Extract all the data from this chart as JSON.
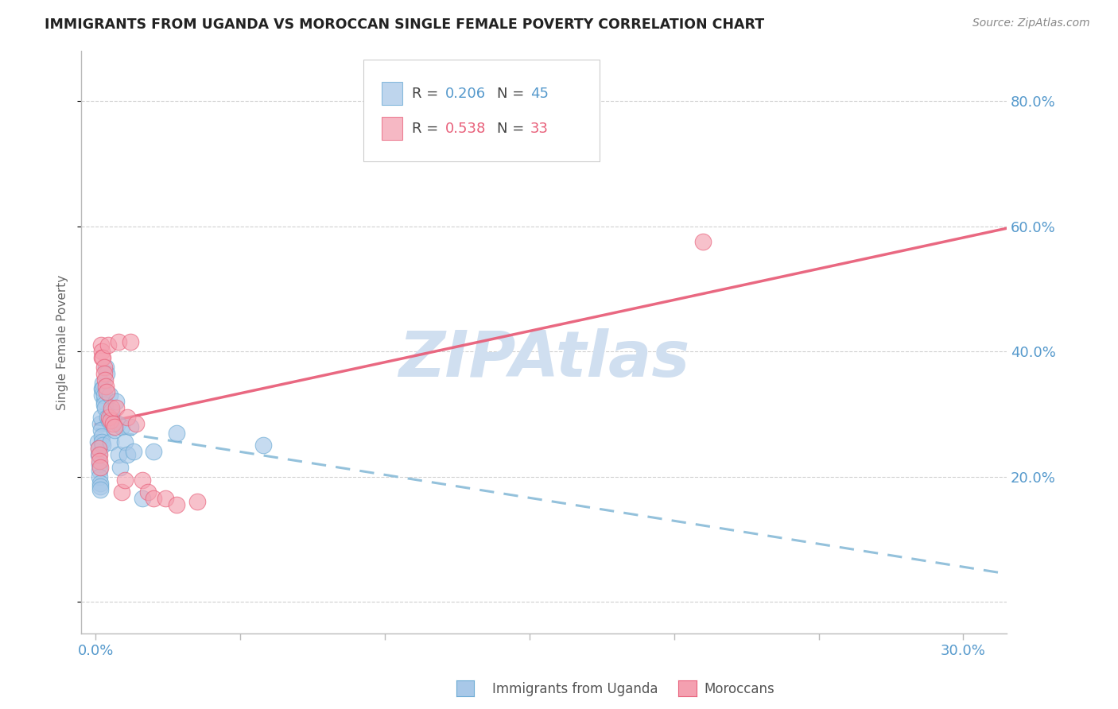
{
  "title": "IMMIGRANTS FROM UGANDA VS MOROCCAN SINGLE FEMALE POVERTY CORRELATION CHART",
  "source": "Source: ZipAtlas.com",
  "ylabel_label": "Single Female Poverty",
  "x_ticks": [
    0.0,
    0.05,
    0.1,
    0.15,
    0.2,
    0.25,
    0.3
  ],
  "x_tick_labels": [
    "0.0%",
    "",
    "",
    "",
    "",
    "",
    "30.0%"
  ],
  "y_ticks": [
    0.0,
    0.2,
    0.4,
    0.6,
    0.8
  ],
  "y_tick_labels": [
    "",
    "20.0%",
    "40.0%",
    "60.0%",
    "80.0%"
  ],
  "xlim": [
    -0.005,
    0.315
  ],
  "ylim": [
    -0.05,
    0.88
  ],
  "uganda_R": 0.206,
  "uganda_N": 45,
  "moroccan_R": 0.538,
  "moroccan_N": 33,
  "blue_color": "#a8c8e8",
  "pink_color": "#f4a0b0",
  "blue_edge_color": "#6aaad4",
  "pink_edge_color": "#e8607a",
  "blue_line_color": "#88bbd8",
  "pink_line_color": "#e8607a",
  "watermark_color": "#d0dff0",
  "grid_color": "#d0d0d0",
  "axis_label_color": "#5599cc",
  "title_color": "#222222",
  "legend_text_color": "#444444",
  "uganda_x": [
    0.0008,
    0.001,
    0.001,
    0.0012,
    0.0012,
    0.0013,
    0.0015,
    0.0015,
    0.0015,
    0.0016,
    0.0018,
    0.0018,
    0.002,
    0.002,
    0.0022,
    0.0022,
    0.0025,
    0.0025,
    0.0025,
    0.0028,
    0.003,
    0.003,
    0.0032,
    0.0035,
    0.0038,
    0.004,
    0.0045,
    0.0048,
    0.005,
    0.0055,
    0.006,
    0.0065,
    0.007,
    0.0075,
    0.008,
    0.0085,
    0.009,
    0.01,
    0.011,
    0.012,
    0.013,
    0.016,
    0.02,
    0.028,
    0.058
  ],
  "uganda_y": [
    0.255,
    0.245,
    0.235,
    0.22,
    0.21,
    0.2,
    0.19,
    0.185,
    0.18,
    0.285,
    0.295,
    0.275,
    0.34,
    0.33,
    0.265,
    0.255,
    0.35,
    0.34,
    0.25,
    0.32,
    0.33,
    0.315,
    0.31,
    0.375,
    0.365,
    0.295,
    0.29,
    0.33,
    0.255,
    0.305,
    0.29,
    0.275,
    0.32,
    0.285,
    0.235,
    0.215,
    0.28,
    0.255,
    0.235,
    0.28,
    0.24,
    0.165,
    0.24,
    0.27,
    0.25
  ],
  "moroccan_x": [
    0.001,
    0.0012,
    0.0013,
    0.0015,
    0.0018,
    0.002,
    0.0022,
    0.0025,
    0.0028,
    0.003,
    0.0032,
    0.0035,
    0.0038,
    0.0042,
    0.0045,
    0.005,
    0.0055,
    0.006,
    0.0065,
    0.007,
    0.008,
    0.009,
    0.01,
    0.011,
    0.012,
    0.014,
    0.016,
    0.018,
    0.02,
    0.024,
    0.028,
    0.035,
    0.21
  ],
  "moroccan_y": [
    0.245,
    0.235,
    0.225,
    0.215,
    0.41,
    0.4,
    0.39,
    0.39,
    0.375,
    0.365,
    0.355,
    0.345,
    0.335,
    0.41,
    0.295,
    0.29,
    0.31,
    0.285,
    0.28,
    0.31,
    0.415,
    0.175,
    0.195,
    0.295,
    0.415,
    0.285,
    0.195,
    0.175,
    0.165,
    0.165,
    0.155,
    0.16,
    0.575
  ]
}
